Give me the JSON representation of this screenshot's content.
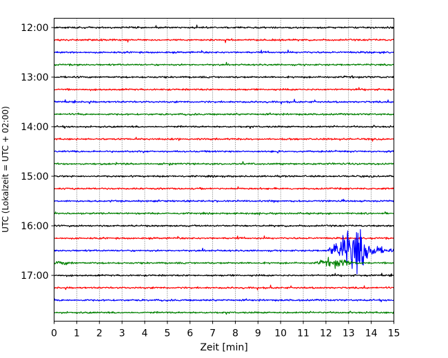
{
  "chart_data": {
    "type": "line",
    "title": "",
    "xlabel": "Zeit  [min]",
    "ylabel": "UTC (Lokalzeit = UTC + 02:00)",
    "xlim": [
      0,
      15
    ],
    "xticks": [
      0,
      1,
      2,
      3,
      4,
      5,
      6,
      7,
      8,
      9,
      10,
      11,
      12,
      13,
      14,
      15
    ],
    "yticks": [
      "12:00",
      "13:00",
      "14:00",
      "15:00",
      "16:00",
      "17:00"
    ],
    "ytick_rows": [
      0,
      4,
      8,
      12,
      16,
      20
    ],
    "grid": "vertical-dotted",
    "trace_colors": [
      "#000000",
      "#ff0000",
      "#0000ff",
      "#008000"
    ],
    "trace_order": [
      "black",
      "red",
      "blue",
      "green"
    ],
    "rows_per_hour": 4,
    "minutes_per_row": 15,
    "start_time": "12:00",
    "row_count": 24,
    "events": [
      {
        "row": 18,
        "start_min": 12.0,
        "peak_min": 13.4,
        "end_min": 15.0,
        "peak_amplitude": 3.2
      },
      {
        "row": 19,
        "start_min": 11.4,
        "peak_min": 12.6,
        "end_min": 13.2,
        "peak_amplitude": 0.5
      },
      {
        "row": 19,
        "start_min": 0.0,
        "peak_min": 0.3,
        "end_min": 1.0,
        "peak_amplitude": 0.2
      }
    ]
  }
}
